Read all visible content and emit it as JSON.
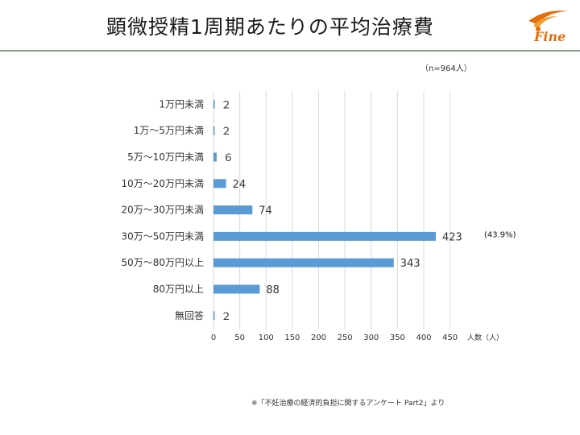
{
  "title": "顕微授精1周期あたりの平均治療費",
  "logo_text": "Fine",
  "sample_note": "（n=964人）",
  "footnote": "※「不妊治療の経済的負担に関するアンケート Part2」より",
  "colors": {
    "bar": "#5b9bd5",
    "grid": "#d9d9d9",
    "rule": "#8aa088",
    "logo": "#e46c0a"
  },
  "chart_data": {
    "type": "bar",
    "orientation": "horizontal",
    "categories": [
      "1万円未満",
      "1万～5万円未満",
      "5万～10万円未満",
      "10万～20万円未満",
      "20万～30万円未満",
      "30万～50万円未満",
      "50万～80万円以上",
      "80万円以上",
      "無回答"
    ],
    "values": [
      2,
      2,
      6,
      24,
      74,
      423,
      343,
      88,
      2
    ],
    "value_labels": [
      "２",
      "２",
      "６",
      "24",
      "74",
      "423",
      "343",
      "88",
      "２"
    ],
    "xlim": [
      0,
      450
    ],
    "xticks": [
      0,
      50,
      100,
      150,
      200,
      250,
      300,
      350,
      400,
      450
    ],
    "xlabel": "人数（人）",
    "grid": true,
    "annotation": {
      "category_index": 5,
      "text": "(43.9%)"
    }
  }
}
